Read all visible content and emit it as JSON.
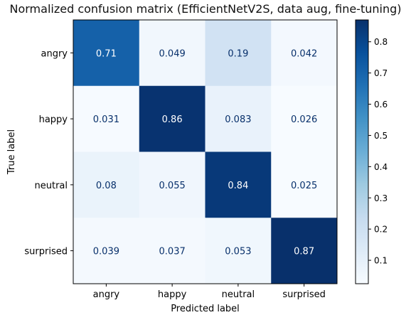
{
  "chart_data": {
    "type": "heatmap",
    "title": "Normalized confusion matrix (EfficientNetV2S, data aug, fine-tuning)",
    "xlabel": "Predicted label",
    "ylabel": "True label",
    "categories": [
      "angry",
      "happy",
      "neutral",
      "surprised"
    ],
    "x_tick_labels": [
      "angry",
      "happy",
      "neutral",
      "surprised"
    ],
    "y_tick_labels": [
      "angry",
      "happy",
      "neutral",
      "surprised"
    ],
    "values": [
      [
        0.71,
        0.049,
        0.19,
        0.042
      ],
      [
        0.031,
        0.86,
        0.083,
        0.026
      ],
      [
        0.08,
        0.055,
        0.84,
        0.025
      ],
      [
        0.039,
        0.037,
        0.053,
        0.87
      ]
    ],
    "cell_labels": [
      [
        "0.71",
        "0.049",
        "0.19",
        "0.042"
      ],
      [
        "0.031",
        "0.86",
        "0.083",
        "0.026"
      ],
      [
        "0.08",
        "0.055",
        "0.84",
        "0.025"
      ],
      [
        "0.039",
        "0.037",
        "0.053",
        "0.87"
      ]
    ],
    "colormap": "Blues",
    "color_low": "#f7fbff",
    "color_high": "#08306b",
    "vmin": 0.025,
    "vmax": 0.87,
    "colorbar_ticks": [
      0.1,
      0.2,
      0.3,
      0.4,
      0.5,
      0.6,
      0.7,
      0.8
    ],
    "colorbar_tick_labels": [
      "0.1",
      "0.2",
      "0.3",
      "0.4",
      "0.5",
      "0.6",
      "0.7",
      "0.8"
    ],
    "grid": false,
    "legend": "colorbar-right"
  }
}
